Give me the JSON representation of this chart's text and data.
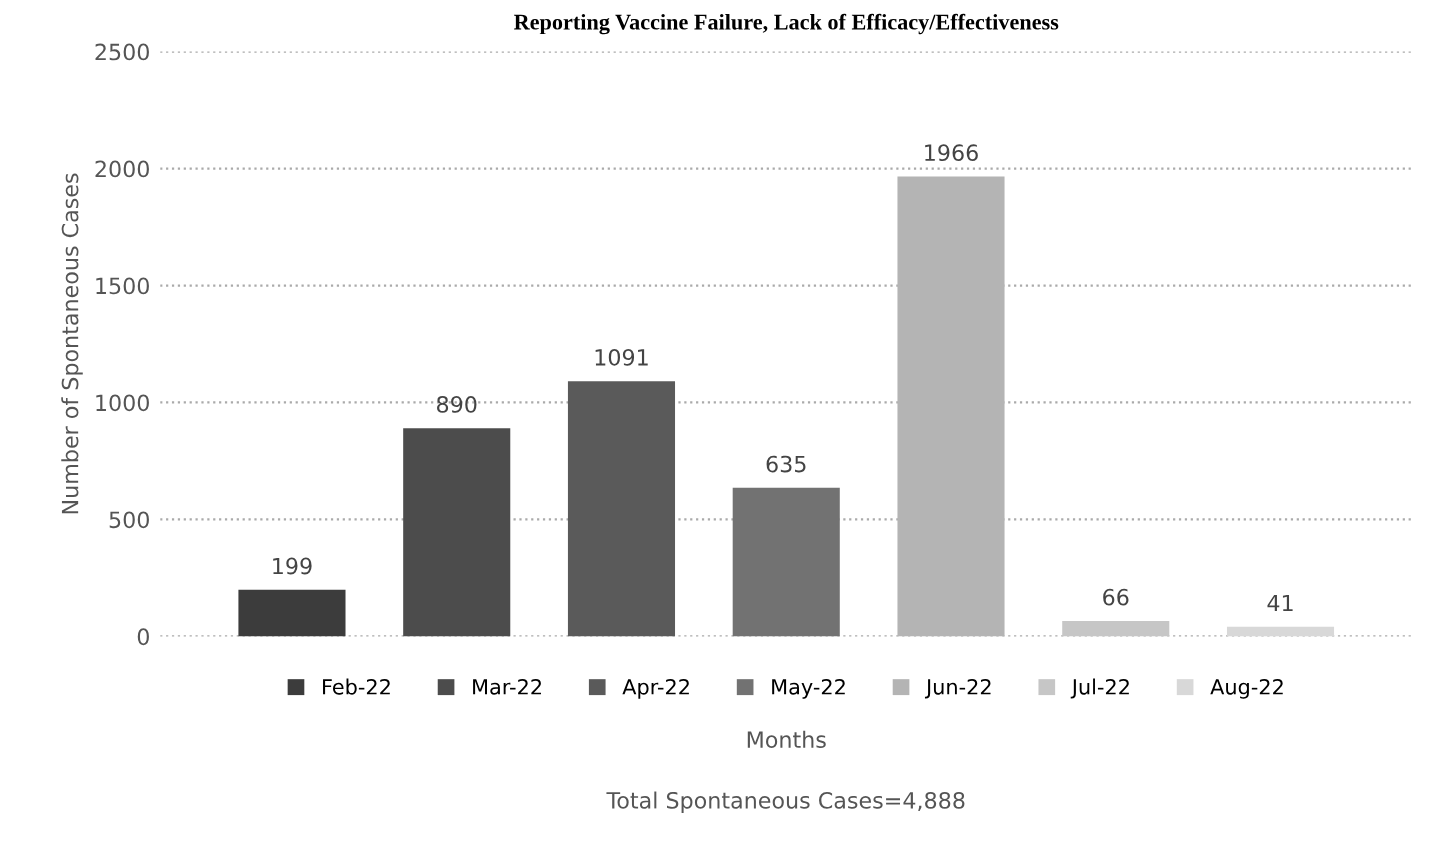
{
  "chart_data": {
    "type": "bar",
    "title": "Reporting Vaccine Failure, Lack of Efficacy/Effectiveness",
    "categories": [
      null,
      null,
      null,
      null,
      null,
      null,
      null
    ],
    "series": [
      {
        "name": "Feb-22",
        "color": "#3c3c3c",
        "values": [
          199,
          null,
          null,
          null,
          null,
          null,
          null
        ]
      },
      {
        "name": "Mar-22",
        "color": "#4c4c4c",
        "values": [
          null,
          890,
          null,
          null,
          null,
          null,
          null
        ]
      },
      {
        "name": "Apr-22",
        "color": "#5a5a5a",
        "values": [
          null,
          null,
          1091,
          null,
          null,
          null,
          null
        ]
      },
      {
        "name": "May-22",
        "color": "#727272",
        "values": [
          null,
          null,
          null,
          635,
          null,
          null,
          null
        ]
      },
      {
        "name": "Jun-22",
        "color": "#b4b4b4",
        "values": [
          null,
          null,
          null,
          null,
          1966,
          null,
          null
        ]
      },
      {
        "name": "Jul-22",
        "color": "#c6c6c6",
        "values": [
          null,
          null,
          null,
          null,
          null,
          66,
          null
        ]
      },
      {
        "name": "Aug-22",
        "color": "#d8d8d8",
        "values": [
          null,
          null,
          null,
          null,
          null,
          null,
          41
        ]
      }
    ],
    "ylim": [
      0,
      2500
    ],
    "yticks": [
      0,
      500,
      1000,
      1500,
      2000,
      2500
    ],
    "xlabel": "Months",
    "ylabel": "Number of Spontaneous Cases",
    "annotations": [
      "Total Spontaneous Cases=4,888"
    ],
    "data_labels": true,
    "grid": "y",
    "legend": "bottom",
    "tick_labels": "y"
  }
}
